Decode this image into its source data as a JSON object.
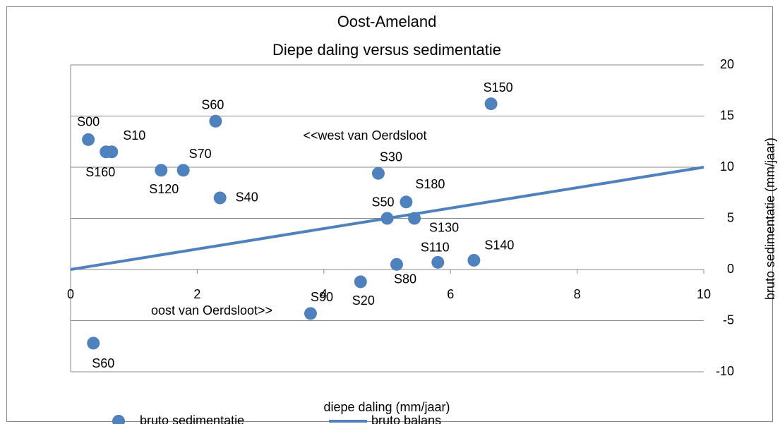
{
  "chart_data": {
    "type": "scatter",
    "title": "Oost-Ameland",
    "subtitle": "Diepe daling versus sedimentatie",
    "x_label": "diepe daling (mm/jaar)",
    "y_label": "bruto sedimentatie (mm/jaar)",
    "annotations": [
      "<<west van Oerdsloot",
      "oost van Oerdsloot>>"
    ],
    "xlim": [
      0,
      10
    ],
    "xticks": [
      0,
      2,
      4,
      6,
      8,
      10
    ],
    "ylim": [
      -10,
      20
    ],
    "yticks": [
      -10,
      -5,
      0,
      5,
      10,
      15,
      20
    ],
    "grid": true,
    "legend": "bottom",
    "series": [
      {
        "name": "bruto sedimentatie",
        "color": "#4f81bd",
        "kind": "points",
        "labels": [
          "S00",
          "S160",
          "S10",
          "S60",
          "S70",
          "S120",
          "S40",
          "S30",
          "S180",
          "S50",
          "S130",
          "S150",
          "S140",
          "S110",
          "S80",
          "S20",
          "S90",
          "S60"
        ],
        "x": [
          0.28,
          0.56,
          0.65,
          2.29,
          1.78,
          1.43,
          2.36,
          4.86,
          5.3,
          5.0,
          5.43,
          6.64,
          6.37,
          5.8,
          5.15,
          4.58,
          3.79,
          0.36
        ],
        "values": [
          12.7,
          11.5,
          11.5,
          14.5,
          9.7,
          9.7,
          7.0,
          9.4,
          6.6,
          5.0,
          5.0,
          16.2,
          0.9,
          0.7,
          0.5,
          -1.2,
          -4.3,
          -7.2
        ]
      },
      {
        "name": "bruto balans",
        "color": "#4f81bd",
        "kind": "line",
        "x": [
          0,
          10
        ],
        "values": [
          0,
          10
        ]
      }
    ]
  }
}
